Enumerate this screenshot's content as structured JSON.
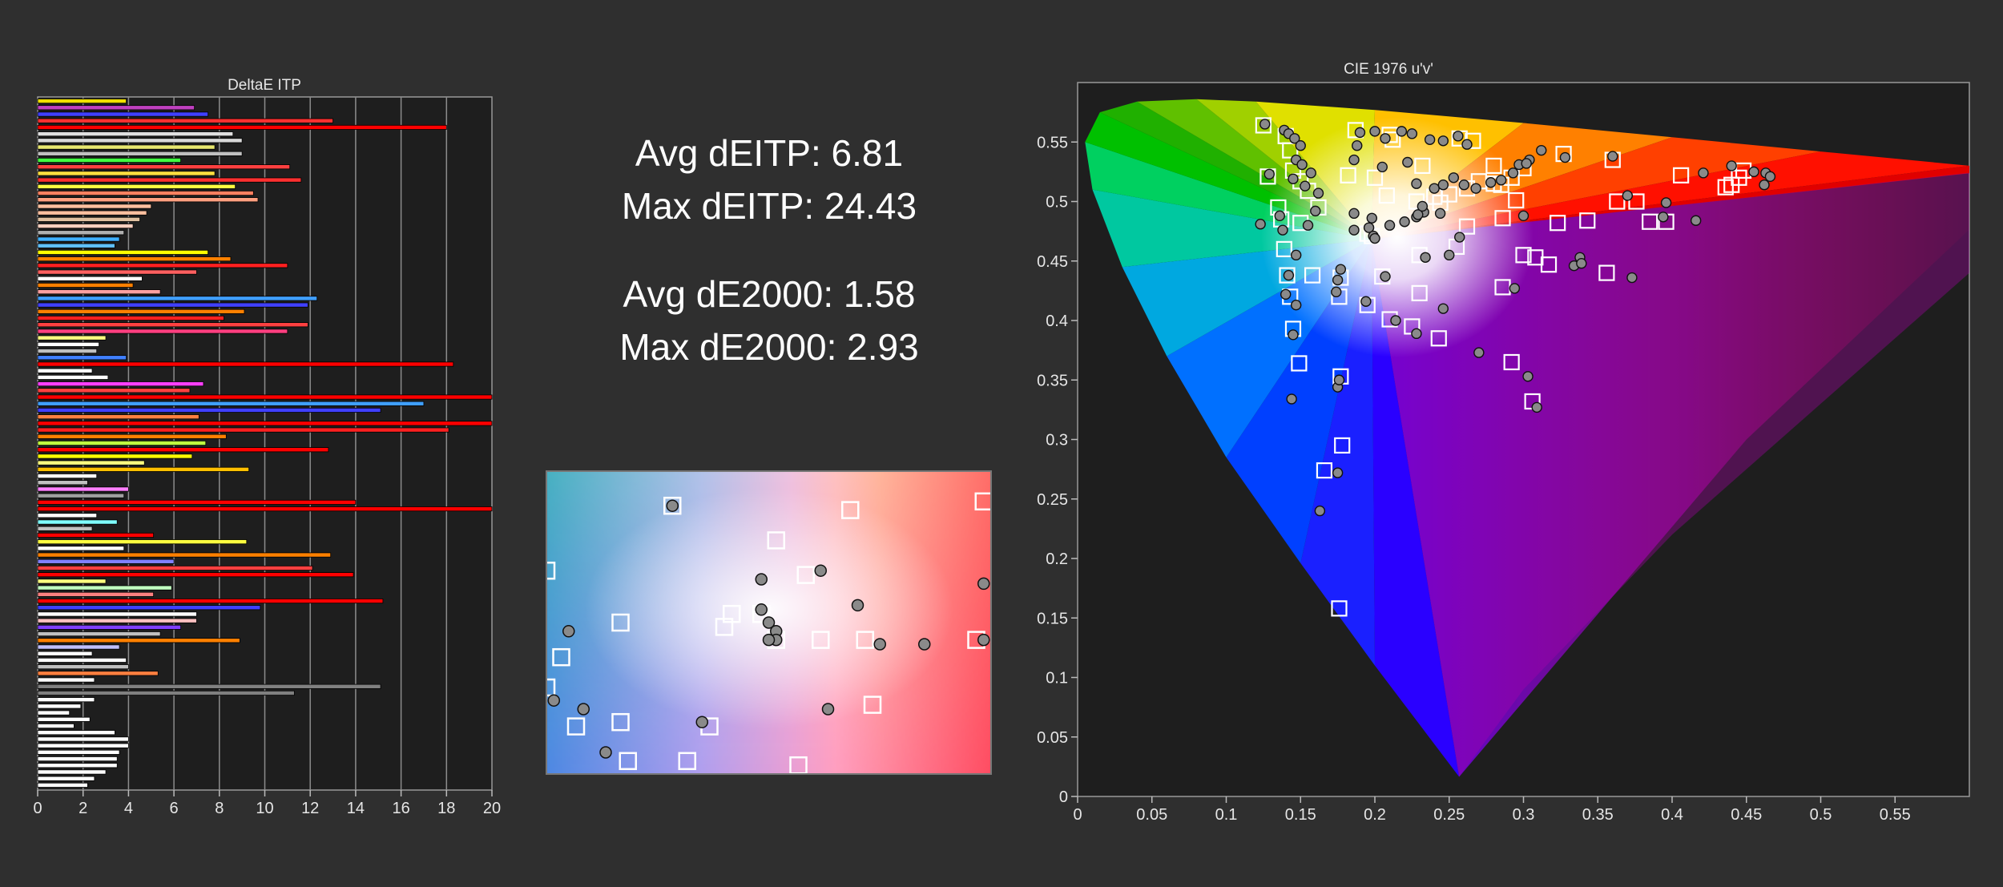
{
  "stats": {
    "avg_deitp": "Avg dEITP: 6.81",
    "max_deitp": "Max dEITP: 24.43",
    "avg_de2000": "Avg dE2000: 1.58",
    "max_de2000": "Max dE2000: 2.93"
  },
  "colors": {
    "background": "#2f2f2f",
    "plot_background": "#1e1e1e",
    "grid": "#8c8c8c",
    "axis_text": "#e6e6e6"
  },
  "chart_data": [
    {
      "type": "bar",
      "orientation": "horizontal",
      "title": "DeltaE ITP",
      "xlim": [
        0,
        20
      ],
      "xticks": [
        0,
        2,
        4,
        6,
        8,
        10,
        12,
        14,
        16,
        18,
        20
      ],
      "grid": true,
      "series": [
        {
          "values": [
            3.9,
            6.9,
            7.5,
            13,
            18,
            8.6,
            9.0,
            7.8,
            9.0,
            6.3,
            11.1,
            7.8,
            11.6,
            8.7,
            9.5,
            9.7,
            5.0,
            4.8,
            4.5,
            4.2,
            3.8,
            3.6,
            3.4,
            7.5,
            8.5,
            11.0,
            7.0,
            4.6,
            4.2,
            5.4,
            12.3,
            11.9,
            9.1,
            8.2,
            11.9,
            11.0,
            3.0,
            2.7,
            2.6,
            3.9,
            18.3,
            2.4,
            3.1,
            7.3,
            6.7,
            20,
            17.0,
            15.1,
            7.1,
            20,
            18.1,
            8.3,
            7.4,
            12.8,
            6.8,
            4.7,
            9.3,
            2.6,
            2.2,
            4.0,
            3.8,
            14.0,
            20,
            2.6,
            3.5,
            2.4,
            5.1,
            9.2,
            3.8,
            12.9,
            6.0,
            12.1,
            13.9,
            3.0,
            5.9,
            5.1,
            15.2,
            9.8,
            7.0,
            7.0,
            6.3,
            5.4,
            8.9,
            3.6,
            2.4,
            3.9,
            4.0,
            5.3,
            2.5,
            15.1,
            11.3,
            2.5,
            1.9,
            1.4,
            2.3,
            1.6,
            3.4,
            4.0,
            4.0,
            3.6,
            3.5,
            3.5,
            3.0,
            2.5,
            2.2
          ],
          "colors": [
            "#f0e000",
            "#c040c0",
            "#4040ff",
            "#ff3030",
            "#ff0000",
            "#e0e0e0",
            "#d8d8d8",
            "#e8e870",
            "#c0c0c0",
            "#40ff40",
            "#ff4040",
            "#ffe040",
            "#ff3030",
            "#ffff40",
            "#ff8060",
            "#ffa080",
            "#ffc0a0",
            "#ffc0a0",
            "#e0c0a0",
            "#ffd0c0",
            "#b0b0b0",
            "#40b0ff",
            "#60c0ff",
            "#ffff00",
            "#ff8000",
            "#ff2020",
            "#ff6060",
            "#ffffff",
            "#ff8000",
            "#ffa0a0",
            "#40a0ff",
            "#4040ff",
            "#ff8000",
            "#ff2020",
            "#ff4040",
            "#ff4080",
            "#ffff80",
            "#ffffff",
            "#c0c0c0",
            "#4080ff",
            "#ff0000",
            "#ffffff",
            "#ffffff",
            "#ff40ff",
            "#ff4040",
            "#ff0000",
            "#40a0ff",
            "#4040ff",
            "#ff8040",
            "#ff0000",
            "#ff2020",
            "#ff8000",
            "#c0ff40",
            "#ff0000",
            "#ffff00",
            "#ffff80",
            "#ffc000",
            "#ffffff",
            "#c0c0c0",
            "#ff80ff",
            "#a0a0a0",
            "#ff0000",
            "#ff0000",
            "#ffffff",
            "#80ffff",
            "#c0c0c0",
            "#ff0000",
            "#ffff40",
            "#ffffff",
            "#ff8000",
            "#8080ff",
            "#ff4040",
            "#ff0000",
            "#ffff80",
            "#c0ffc0",
            "#ff8080",
            "#ff0000",
            "#4040ff",
            "#ffffff",
            "#ffc0c0",
            "#8040ff",
            "#c0c0c0",
            "#ff8000",
            "#c0c0ff",
            "#ffffff",
            "#ffffff",
            "#c0c0c0",
            "#ff8040",
            "#ffffff",
            "#808080",
            "#808080",
            "#ffffff",
            "#ffffff",
            "#ffffff",
            "#ffffff",
            "#ffffff",
            "#ffffff",
            "#ffffff",
            "#ffffff",
            "#ffffff",
            "#ffffff",
            "#ffffff",
            "#ffffff",
            "#ffffff",
            "#ffffff"
          ]
        }
      ]
    },
    {
      "type": "scatter",
      "title": "",
      "xlim": [
        0.185,
        0.245
      ],
      "ylim": [
        0.435,
        0.505
      ],
      "targets": [
        [
          0.185,
          0.482
        ],
        [
          0.202,
          0.497
        ],
        [
          0.187,
          0.462
        ],
        [
          0.195,
          0.47
        ],
        [
          0.214,
          0.472
        ],
        [
          0.216,
          0.489
        ],
        [
          0.22,
          0.481
        ],
        [
          0.226,
          0.496
        ],
        [
          0.209,
          0.469
        ],
        [
          0.21,
          0.472
        ],
        [
          0.216,
          0.466
        ],
        [
          0.222,
          0.466
        ],
        [
          0.228,
          0.466
        ],
        [
          0.244,
          0.498
        ],
        [
          0.243,
          0.466
        ],
        [
          0.185,
          0.455
        ],
        [
          0.189,
          0.446
        ],
        [
          0.195,
          0.447
        ],
        [
          0.207,
          0.446
        ],
        [
          0.229,
          0.451
        ],
        [
          0.204,
          0.438
        ],
        [
          0.196,
          0.438
        ],
        [
          0.219,
          0.437
        ]
      ],
      "measured": [
        [
          0.202,
          0.497
        ],
        [
          0.188,
          0.468
        ],
        [
          0.214,
          0.473
        ],
        [
          0.215,
          0.47
        ],
        [
          0.216,
          0.468
        ],
        [
          0.222,
          0.482
        ],
        [
          0.214,
          0.48
        ],
        [
          0.227,
          0.474
        ],
        [
          0.23,
          0.465
        ],
        [
          0.236,
          0.465
        ],
        [
          0.244,
          0.466
        ],
        [
          0.186,
          0.452
        ],
        [
          0.19,
          0.45
        ],
        [
          0.206,
          0.447
        ],
        [
          0.223,
          0.45
        ],
        [
          0.183,
          0.451
        ],
        [
          0.193,
          0.44
        ],
        [
          0.244,
          0.479
        ],
        [
          0.216,
          0.466
        ],
        [
          0.215,
          0.466
        ]
      ]
    },
    {
      "type": "scatter",
      "title": "CIE 1976 u'v'",
      "xlabel": "",
      "ylabel": "",
      "xlim": [
        0,
        0.6
      ],
      "ylim": [
        0,
        0.6
      ],
      "xticks": [
        0,
        0.05,
        0.1,
        0.15,
        0.2,
        0.25,
        0.3,
        0.35,
        0.4,
        0.45,
        0.5,
        0.55
      ],
      "yticks": [
        0,
        0.05,
        0.1,
        0.15,
        0.2,
        0.25,
        0.3,
        0.35,
        0.4,
        0.45,
        0.5,
        0.55
      ],
      "grid": false,
      "targets": [
        [
          0.125,
          0.564
        ],
        [
          0.14,
          0.555
        ],
        [
          0.143,
          0.543
        ],
        [
          0.145,
          0.526
        ],
        [
          0.128,
          0.521
        ],
        [
          0.15,
          0.517
        ],
        [
          0.135,
          0.495
        ],
        [
          0.155,
          0.509
        ],
        [
          0.162,
          0.495
        ],
        [
          0.137,
          0.485
        ],
        [
          0.15,
          0.482
        ],
        [
          0.139,
          0.46
        ],
        [
          0.141,
          0.438
        ],
        [
          0.143,
          0.42
        ],
        [
          0.145,
          0.393
        ],
        [
          0.149,
          0.364
        ],
        [
          0.177,
          0.353
        ],
        [
          0.178,
          0.295
        ],
        [
          0.166,
          0.274
        ],
        [
          0.176,
          0.158
        ],
        [
          0.158,
          0.438
        ],
        [
          0.177,
          0.436
        ],
        [
          0.176,
          0.42
        ],
        [
          0.182,
          0.522
        ],
        [
          0.2,
          0.52
        ],
        [
          0.208,
          0.505
        ],
        [
          0.198,
          0.471
        ],
        [
          0.195,
          0.473
        ],
        [
          0.205,
          0.437
        ],
        [
          0.21,
          0.401
        ],
        [
          0.195,
          0.413
        ],
        [
          0.225,
          0.395
        ],
        [
          0.23,
          0.423
        ],
        [
          0.243,
          0.385
        ],
        [
          0.23,
          0.455
        ],
        [
          0.244,
          0.499
        ],
        [
          0.25,
          0.506
        ],
        [
          0.262,
          0.511
        ],
        [
          0.27,
          0.517
        ],
        [
          0.28,
          0.515
        ],
        [
          0.285,
          0.514
        ],
        [
          0.292,
          0.52
        ],
        [
          0.3,
          0.528
        ],
        [
          0.28,
          0.53
        ],
        [
          0.266,
          0.551
        ],
        [
          0.257,
          0.553
        ],
        [
          0.212,
          0.552
        ],
        [
          0.187,
          0.56
        ],
        [
          0.21,
          0.556
        ],
        [
          0.232,
          0.53
        ],
        [
          0.228,
          0.5
        ],
        [
          0.24,
          0.504
        ],
        [
          0.262,
          0.479
        ],
        [
          0.255,
          0.462
        ],
        [
          0.286,
          0.486
        ],
        [
          0.295,
          0.501
        ],
        [
          0.3,
          0.455
        ],
        [
          0.286,
          0.428
        ],
        [
          0.292,
          0.365
        ],
        [
          0.306,
          0.332
        ],
        [
          0.327,
          0.54
        ],
        [
          0.36,
          0.535
        ],
        [
          0.323,
          0.482
        ],
        [
          0.308,
          0.453
        ],
        [
          0.317,
          0.447
        ],
        [
          0.343,
          0.484
        ],
        [
          0.356,
          0.44
        ],
        [
          0.363,
          0.5
        ],
        [
          0.376,
          0.5
        ],
        [
          0.385,
          0.483
        ],
        [
          0.396,
          0.483
        ],
        [
          0.406,
          0.522
        ],
        [
          0.436,
          0.512
        ],
        [
          0.44,
          0.514
        ],
        [
          0.445,
          0.52
        ],
        [
          0.448,
          0.526
        ]
      ],
      "measured": [
        [
          0.126,
          0.565
        ],
        [
          0.139,
          0.56
        ],
        [
          0.142,
          0.557
        ],
        [
          0.146,
          0.553
        ],
        [
          0.15,
          0.547
        ],
        [
          0.147,
          0.535
        ],
        [
          0.151,
          0.531
        ],
        [
          0.153,
          0.513
        ],
        [
          0.129,
          0.523
        ],
        [
          0.145,
          0.519
        ],
        [
          0.157,
          0.524
        ],
        [
          0.162,
          0.507
        ],
        [
          0.16,
          0.492
        ],
        [
          0.136,
          0.488
        ],
        [
          0.138,
          0.476
        ],
        [
          0.155,
          0.48
        ],
        [
          0.123,
          0.481
        ],
        [
          0.147,
          0.455
        ],
        [
          0.142,
          0.438
        ],
        [
          0.14,
          0.422
        ],
        [
          0.147,
          0.413
        ],
        [
          0.145,
          0.388
        ],
        [
          0.144,
          0.334
        ],
        [
          0.175,
          0.344
        ],
        [
          0.176,
          0.35
        ],
        [
          0.175,
          0.272
        ],
        [
          0.163,
          0.24
        ],
        [
          0.174,
          0.424
        ],
        [
          0.175,
          0.434
        ],
        [
          0.177,
          0.443
        ],
        [
          0.188,
          0.547
        ],
        [
          0.19,
          0.558
        ],
        [
          0.2,
          0.559
        ],
        [
          0.207,
          0.553
        ],
        [
          0.218,
          0.559
        ],
        [
          0.225,
          0.557
        ],
        [
          0.237,
          0.552
        ],
        [
          0.246,
          0.551
        ],
        [
          0.256,
          0.555
        ],
        [
          0.262,
          0.548
        ],
        [
          0.186,
          0.535
        ],
        [
          0.205,
          0.529
        ],
        [
          0.222,
          0.533
        ],
        [
          0.228,
          0.515
        ],
        [
          0.24,
          0.511
        ],
        [
          0.246,
          0.514
        ],
        [
          0.253,
          0.52
        ],
        [
          0.26,
          0.514
        ],
        [
          0.268,
          0.511
        ],
        [
          0.278,
          0.516
        ],
        [
          0.285,
          0.518
        ],
        [
          0.293,
          0.524
        ],
        [
          0.304,
          0.535
        ],
        [
          0.312,
          0.543
        ],
        [
          0.297,
          0.531
        ],
        [
          0.302,
          0.532
        ],
        [
          0.196,
          0.478
        ],
        [
          0.199,
          0.471
        ],
        [
          0.2,
          0.469
        ],
        [
          0.186,
          0.476
        ],
        [
          0.186,
          0.49
        ],
        [
          0.198,
          0.486
        ],
        [
          0.21,
          0.48
        ],
        [
          0.22,
          0.483
        ],
        [
          0.228,
          0.487
        ],
        [
          0.233,
          0.491
        ],
        [
          0.244,
          0.49
        ],
        [
          0.257,
          0.47
        ],
        [
          0.229,
          0.489
        ],
        [
          0.232,
          0.496
        ],
        [
          0.207,
          0.437
        ],
        [
          0.194,
          0.416
        ],
        [
          0.214,
          0.4
        ],
        [
          0.228,
          0.389
        ],
        [
          0.246,
          0.41
        ],
        [
          0.234,
          0.453
        ],
        [
          0.25,
          0.455
        ],
        [
          0.27,
          0.373
        ],
        [
          0.294,
          0.427
        ],
        [
          0.3,
          0.488
        ],
        [
          0.303,
          0.353
        ],
        [
          0.309,
          0.327
        ],
        [
          0.328,
          0.537
        ],
        [
          0.338,
          0.453
        ],
        [
          0.334,
          0.446
        ],
        [
          0.339,
          0.448
        ],
        [
          0.36,
          0.538
        ],
        [
          0.37,
          0.505
        ],
        [
          0.373,
          0.436
        ],
        [
          0.396,
          0.499
        ],
        [
          0.394,
          0.487
        ],
        [
          0.416,
          0.484
        ],
        [
          0.421,
          0.524
        ],
        [
          0.44,
          0.53
        ],
        [
          0.455,
          0.525
        ],
        [
          0.463,
          0.524
        ],
        [
          0.466,
          0.521
        ],
        [
          0.462,
          0.514
        ]
      ]
    }
  ]
}
